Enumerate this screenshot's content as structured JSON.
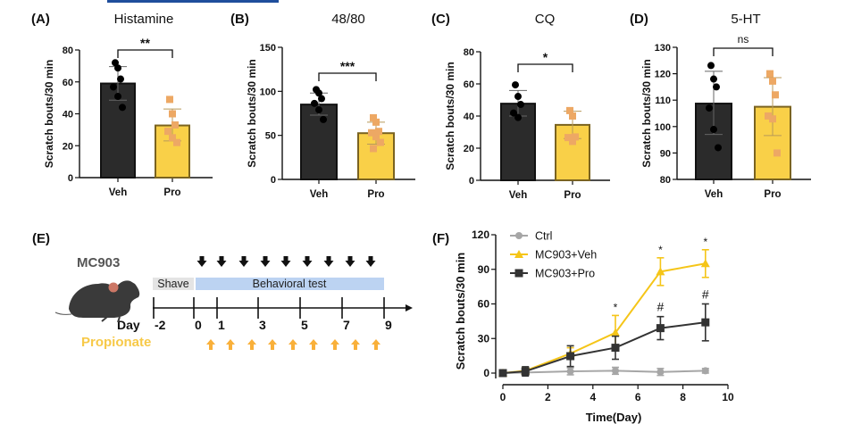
{
  "colors": {
    "veh_bar": "#2b2b2b",
    "pro_bar": "#f9d048",
    "pro_bar_edge": "#7a6320",
    "pro_point": "#eda864",
    "ctrl_line": "#a6a6a6",
    "veh_line": "#f5c518",
    "pro_line": "#333333",
    "shave_box": "#e4e4e4",
    "test_box": "#bcd3f2",
    "propionate_arrow": "#f9b03a",
    "header_bar": "#1f4e9c"
  },
  "chart_data": [
    {
      "panel": "(A)",
      "type": "bar",
      "title": "Histamine",
      "ylabel": "Scratch bouts/30 min",
      "ylim": [
        0,
        80
      ],
      "yticks": [
        0,
        20,
        40,
        60,
        80
      ],
      "categories": [
        "Veh",
        "Pro"
      ],
      "means": [
        59,
        32.7
      ],
      "sd": [
        [
          48.5,
          69.6
        ],
        [
          23,
          43
        ]
      ],
      "points": [
        [
          72,
          68.7,
          61.8,
          56.8,
          50.9,
          44
        ],
        [
          49,
          40,
          33,
          29,
          25,
          22
        ]
      ],
      "significance": "**"
    },
    {
      "panel": "(B)",
      "type": "bar",
      "title": "48/80",
      "ylabel": "Scratch bouts/30 min",
      "ylim": [
        0,
        150
      ],
      "yticks": [
        0,
        50,
        100,
        150
      ],
      "categories": [
        "Veh",
        "Pro"
      ],
      "means": [
        85,
        52.5
      ],
      "sd": [
        [
          73,
          98
        ],
        [
          40,
          65
        ]
      ],
      "points": [
        [
          102,
          98,
          91.7,
          86.3,
          79,
          68
        ],
        [
          70,
          65,
          54.5,
          53,
          48.5,
          42,
          35
        ]
      ],
      "significance": "***"
    },
    {
      "panel": "(C)",
      "type": "bar",
      "title": "CQ",
      "ylabel": "Scratch bouts/30 min",
      "ylim": [
        0,
        80
      ],
      "yticks": [
        0,
        20,
        40,
        60,
        80
      ],
      "categories": [
        "Veh",
        "Pro"
      ],
      "means": [
        47.7,
        34.5
      ],
      "sd": [
        [
          40,
          55.9
        ],
        [
          26,
          43
        ]
      ],
      "points": [
        [
          59.4,
          52.2,
          47.2,
          41.9,
          39.1
        ],
        [
          43.4,
          40,
          27,
          26.6,
          24.2
        ]
      ],
      "significance": "*"
    },
    {
      "panel": "(D)",
      "type": "bar",
      "title": "5-HT",
      "ylabel": "Scratch bouts/30 min",
      "ylim": [
        80,
        130
      ],
      "yticks": [
        80,
        90,
        100,
        110,
        120,
        130
      ],
      "categories": [
        "Veh",
        "Pro"
      ],
      "means": [
        108.7,
        107.5
      ],
      "sd": [
        [
          97,
          120.9
        ],
        [
          96.6,
          118.5
        ]
      ],
      "points": [
        [
          123.1,
          118,
          115,
          107,
          98.9,
          92
        ],
        [
          120,
          117.2,
          112,
          104,
          102.9,
          90
        ]
      ],
      "significance": "ns"
    },
    {
      "panel": "(F)",
      "type": "line",
      "title": "",
      "xlabel": "Time(Day)",
      "ylabel": "Scratch bouts/30 min",
      "xlim": [
        0,
        10
      ],
      "ylim": [
        0,
        120
      ],
      "xticks": [
        0,
        2,
        4,
        6,
        8,
        10
      ],
      "yticks": [
        0,
        30,
        60,
        90,
        120
      ],
      "legend_position": "top-left",
      "x": [
        0,
        1,
        3,
        5,
        7,
        9
      ],
      "series": [
        {
          "name": "Ctrl",
          "marker": "circle",
          "values": [
            0,
            0.5,
            1.5,
            2,
            1,
            2
          ],
          "err": [
            0,
            1,
            3,
            3,
            3,
            2
          ]
        },
        {
          "name": "MC903+Veh",
          "marker": "triangle",
          "values": [
            0,
            2,
            17,
            35,
            88,
            95
          ],
          "err": [
            0,
            3,
            5,
            15,
            12,
            12
          ]
        },
        {
          "name": "MC903+Pro",
          "marker": "square",
          "values": [
            0,
            1.5,
            14.7,
            22,
            39,
            44
          ],
          "err": [
            0,
            4,
            9,
            10,
            10,
            16
          ]
        }
      ],
      "annotations": [
        {
          "x": 5,
          "text": "*",
          "over": "MC903+Veh"
        },
        {
          "x": 7,
          "text": "*",
          "over": "MC903+Veh"
        },
        {
          "x": 9,
          "text": "*",
          "over": "MC903+Veh"
        },
        {
          "x": 7,
          "text": "#",
          "over": "MC903+Pro"
        },
        {
          "x": 9,
          "text": "#",
          "over": "MC903+Pro"
        }
      ]
    }
  ],
  "timeline": {
    "panel": "(E)",
    "agent_top": "MC903",
    "agent_bottom": "Propionate",
    "day_label": "Day",
    "shave_label": "Shave",
    "test_label": "Behavioral test",
    "days": [
      "-2",
      "0",
      "1",
      "3",
      "5",
      "7",
      "9"
    ],
    "mc903_doses": 9,
    "propionate_doses": 9
  }
}
